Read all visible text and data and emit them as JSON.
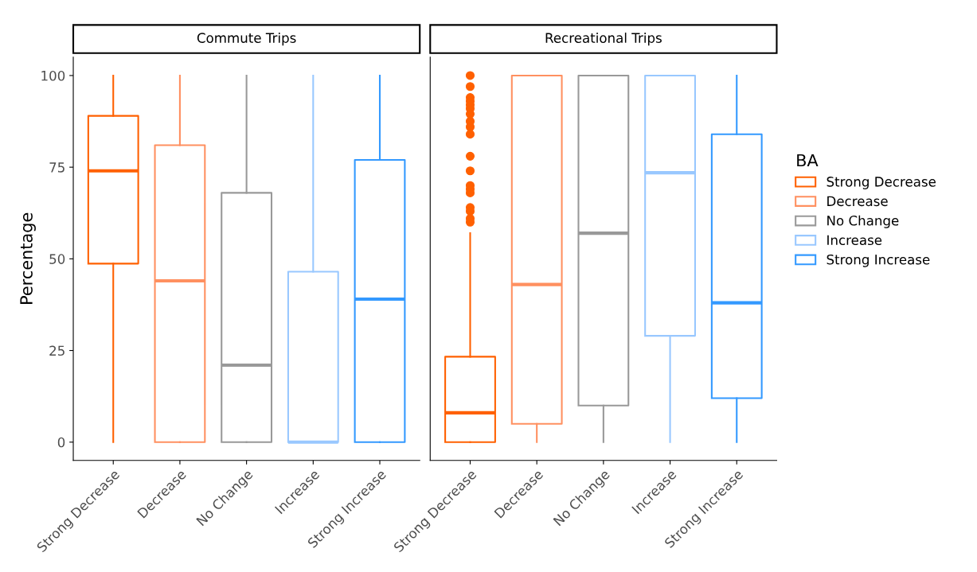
{
  "chart_data": [
    {
      "type": "box",
      "title": "Commute Trips",
      "ylabel": "Percentage",
      "categories": [
        "Strong Decrease",
        "Decrease",
        "No Change",
        "Increase",
        "Strong Increase"
      ],
      "ylim": [
        -5,
        105
      ],
      "yticks": [
        0,
        25,
        50,
        75,
        100
      ],
      "grid": false,
      "series": [
        {
          "color": "#ff6000",
          "boxes": [
            {
              "low": 0,
              "q1": 48.7,
              "median": 74,
              "q3": 89,
              "high": 100
            },
            null,
            null,
            null,
            null
          ]
        },
        {
          "color": "#ff9060",
          "boxes": [
            null,
            {
              "low": 0,
              "q1": 0,
              "median": 44,
              "q3": 81,
              "high": 100
            },
            null,
            null,
            null
          ]
        },
        {
          "color": "#999999",
          "boxes": [
            null,
            null,
            {
              "low": 0,
              "q1": 0,
              "median": 21,
              "q3": 68,
              "high": 100
            },
            null,
            null
          ]
        },
        {
          "color": "#99c8ff",
          "boxes": [
            null,
            null,
            null,
            {
              "low": 0,
              "q1": 0,
              "median": 0,
              "q3": 46.5,
              "high": 100
            },
            null
          ]
        },
        {
          "color": "#3399ff",
          "boxes": [
            null,
            null,
            null,
            null,
            {
              "low": 0,
              "q1": 0,
              "median": 39,
              "q3": 77,
              "high": 100
            }
          ]
        }
      ]
    },
    {
      "type": "box",
      "title": "Recreational Trips",
      "categories": [
        "Strong Decrease",
        "Decrease",
        "No Change",
        "Increase",
        "Strong Increase"
      ],
      "ylim": [
        -5,
        105
      ],
      "tick_labels": "x",
      "grid": false,
      "legend": "right",
      "legend_title": "BA",
      "series": [
        {
          "name": "Strong Decrease",
          "color": "#ff6000",
          "boxes": [
            {
              "low": 0,
              "q1": 0,
              "median": 8,
              "q3": 23.3,
              "high": 57,
              "outliers": [
                100,
                97,
                94,
                93,
                92,
                91,
                89.5,
                87.5,
                86,
                84,
                78,
                74,
                70,
                69,
                68,
                64,
                63,
                61,
                60
              ]
            },
            null,
            null,
            null,
            null
          ]
        },
        {
          "name": "Decrease",
          "color": "#ff9060",
          "boxes": [
            null,
            {
              "low": 0,
              "q1": 5,
              "median": 43,
              "q3": 100,
              "high": 100
            },
            null,
            null,
            null
          ]
        },
        {
          "name": "No Change",
          "color": "#999999",
          "boxes": [
            null,
            null,
            {
              "low": 0,
              "q1": 10,
              "median": 57,
              "q3": 100,
              "high": 100
            },
            null,
            null
          ]
        },
        {
          "name": "Increase",
          "color": "#99c8ff",
          "boxes": [
            null,
            null,
            null,
            {
              "low": 0,
              "q1": 29,
              "median": 73.5,
              "q3": 100,
              "high": 100
            },
            null
          ]
        },
        {
          "name": "Strong Increase",
          "color": "#3399ff",
          "boxes": [
            null,
            null,
            null,
            null,
            {
              "low": 0,
              "q1": 12,
              "median": 38,
              "q3": 84,
              "high": 100
            }
          ]
        }
      ]
    }
  ]
}
